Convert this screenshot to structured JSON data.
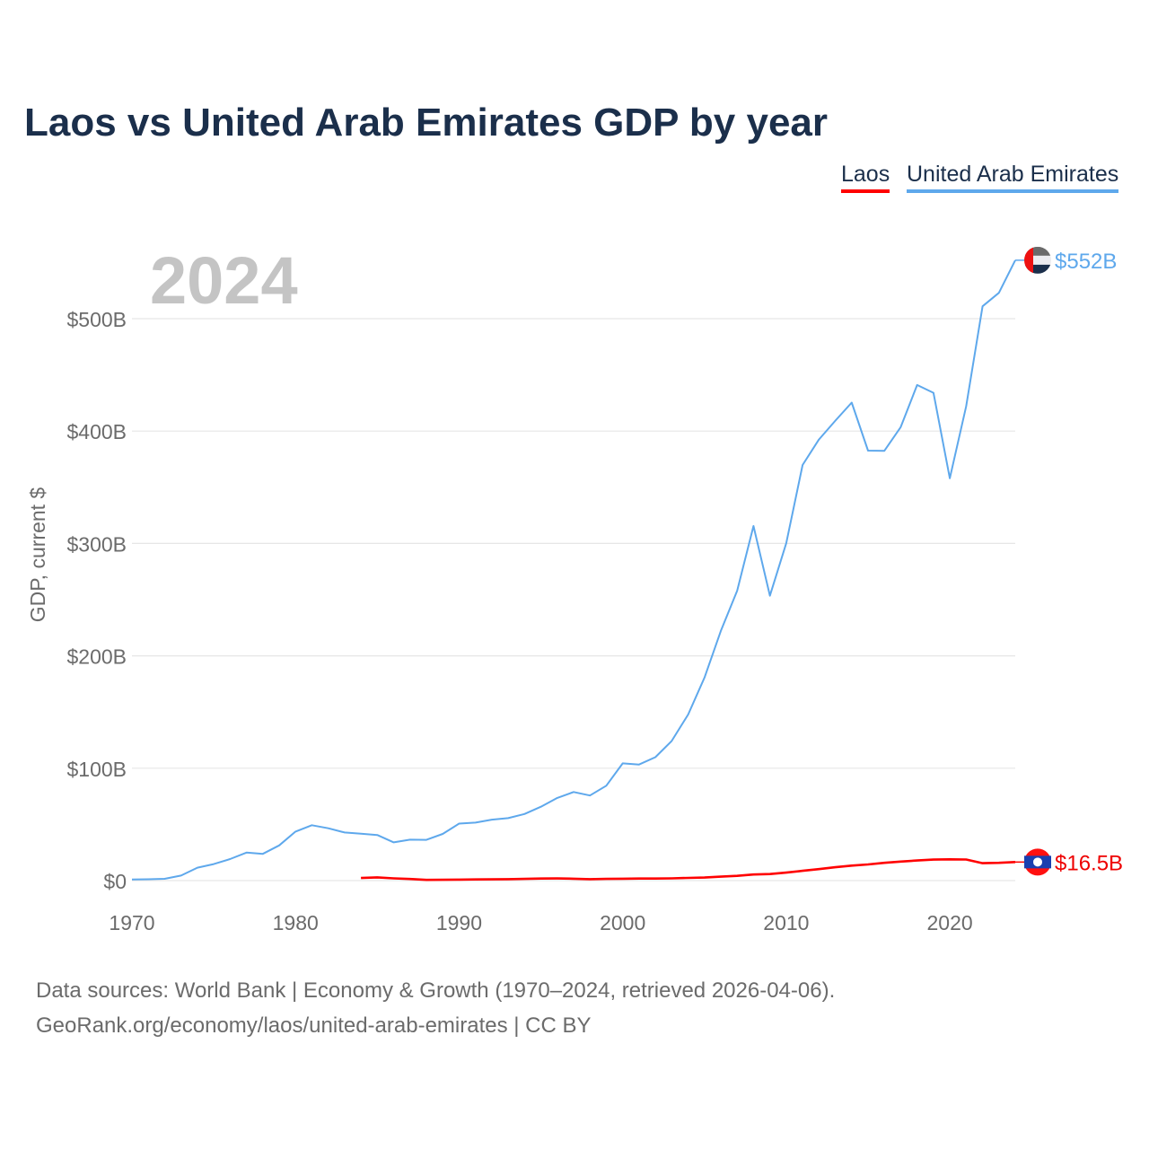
{
  "title": "Laos vs United Arab Emirates GDP by year",
  "legend": [
    "Laos",
    "United Arab Emirates"
  ],
  "year_label": "2024",
  "source_lines": [
    "Data sources: World Bank | Economy & Growth (1970–2024, retrieved 2026-04-06).",
    "GeoRank.org/economy/laos/united-arab-emirates | CC BY"
  ],
  "chart_data": {
    "type": "line",
    "title": "Laos vs United Arab Emirates GDP by year",
    "xlabel": "",
    "ylabel": "GDP, current $",
    "xlim": [
      1970,
      2024
    ],
    "ylim": [
      0,
      560
    ],
    "xticks": [
      1970,
      1980,
      1990,
      2000,
      2010,
      2020
    ],
    "yticks": [
      0,
      100,
      200,
      300,
      400,
      500
    ],
    "ytick_labels": [
      "$0",
      "$100B",
      "$200B",
      "$300B",
      "$400B",
      "$500B"
    ],
    "grid": true,
    "legend_position": "top-right",
    "units": "billion USD",
    "series": [
      {
        "name": "Laos",
        "color": "#ff0000",
        "end_label": "$16.5B",
        "flag": "laos-flag",
        "x": [
          1984,
          1985,
          1986,
          1987,
          1988,
          1989,
          1990,
          1991,
          1992,
          1993,
          1994,
          1995,
          1996,
          1997,
          1998,
          1999,
          2000,
          2001,
          2002,
          2003,
          2004,
          2005,
          2006,
          2007,
          2008,
          2009,
          2010,
          2011,
          2012,
          2013,
          2014,
          2015,
          2016,
          2017,
          2018,
          2019,
          2020,
          2021,
          2022,
          2023,
          2024
        ],
        "values": [
          2.3,
          2.9,
          2.0,
          1.4,
          0.6,
          0.7,
          0.9,
          1.0,
          1.1,
          1.3,
          1.5,
          1.8,
          1.9,
          1.7,
          1.3,
          1.5,
          1.7,
          1.8,
          1.8,
          2.0,
          2.4,
          2.7,
          3.5,
          4.2,
          5.4,
          5.8,
          7.1,
          8.7,
          10.2,
          11.9,
          13.3,
          14.4,
          15.8,
          16.9,
          17.9,
          18.7,
          18.9,
          18.8,
          15.5,
          15.8,
          16.5
        ]
      },
      {
        "name": "United Arab Emirates",
        "color": "#5ea8ec",
        "end_label": "$552B",
        "flag": "uae-flag",
        "x": [
          1970,
          1971,
          1972,
          1973,
          1974,
          1975,
          1976,
          1977,
          1978,
          1979,
          1980,
          1981,
          1982,
          1983,
          1984,
          1985,
          1986,
          1987,
          1988,
          1989,
          1990,
          1991,
          1992,
          1993,
          1994,
          1995,
          1996,
          1997,
          1998,
          1999,
          2000,
          2001,
          2002,
          2003,
          2004,
          2005,
          2006,
          2007,
          2008,
          2009,
          2010,
          2011,
          2012,
          2013,
          2014,
          2015,
          2016,
          2017,
          2018,
          2019,
          2020,
          2021,
          2022,
          2023,
          2024
        ],
        "values": [
          1.0,
          1.2,
          1.6,
          4.5,
          11.5,
          14.7,
          19.2,
          24.9,
          23.8,
          31.3,
          43.6,
          49.3,
          46.6,
          42.8,
          41.8,
          40.6,
          34.0,
          36.4,
          36.3,
          41.5,
          50.7,
          51.6,
          54.2,
          55.6,
          59.3,
          65.7,
          73.6,
          78.8,
          75.7,
          84.4,
          104.3,
          103.3,
          109.8,
          124.3,
          147.8,
          180.6,
          222.1,
          257.9,
          315.5,
          253.5,
          300.2,
          369.8,
          392.5,
          409.3,
          425.3,
          382.6,
          382.4,
          403.5,
          441.0,
          434.0,
          358.0,
          422.0,
          511.0,
          523.0,
          552.0
        ]
      }
    ]
  }
}
